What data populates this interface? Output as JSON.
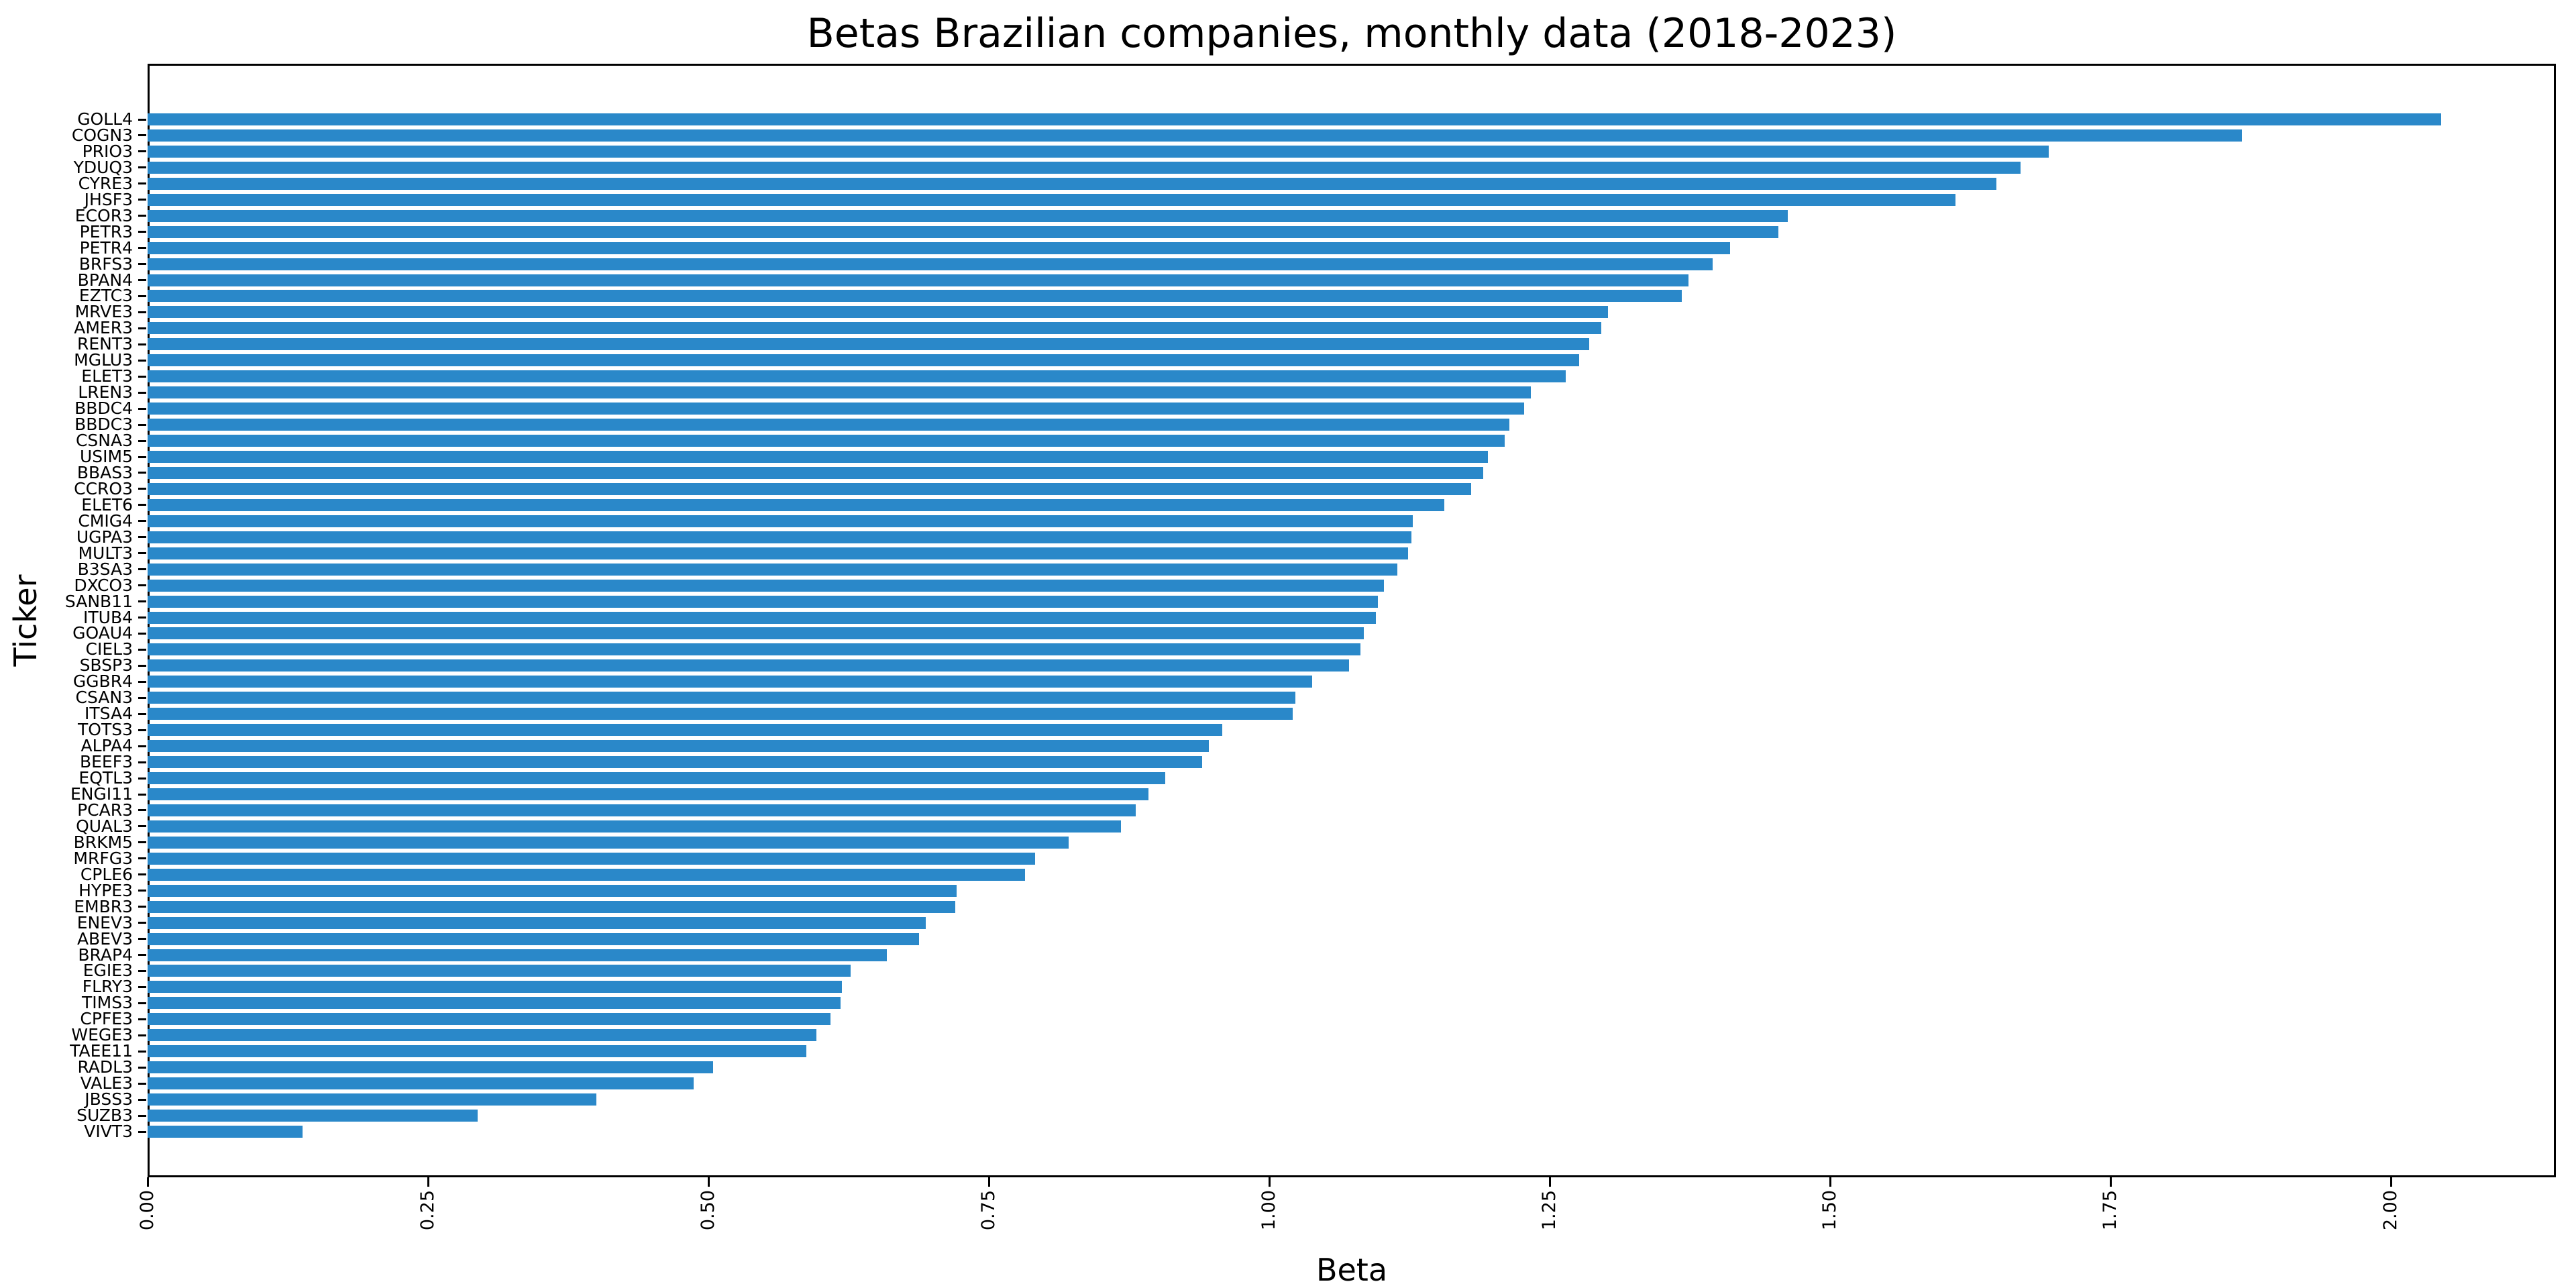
{
  "title": "Betas Brazilian companies, monthly data (2018-2023)",
  "colors": {
    "bar": "#2a88c9",
    "frame": "#000000",
    "background": "#ffffff",
    "text": "#000000"
  },
  "chart_data": {
    "type": "bar",
    "orientation": "horizontal",
    "title": "Betas Brazilian companies, monthly data (2018-2023)",
    "xlabel": "Beta",
    "ylabel": "Ticker",
    "xlim": [
      0,
      2.147
    ],
    "xticks": [
      {
        "value": 0.0,
        "label": "0.00"
      },
      {
        "value": 0.25,
        "label": "0.25"
      },
      {
        "value": 0.5,
        "label": "0.50"
      },
      {
        "value": 0.75,
        "label": "0.75"
      },
      {
        "value": 1.0,
        "label": "1.00"
      },
      {
        "value": 1.25,
        "label": "1.25"
      },
      {
        "value": 1.5,
        "label": "1.50"
      },
      {
        "value": 1.75,
        "label": "1.75"
      },
      {
        "value": 2.0,
        "label": "2.00"
      }
    ],
    "xtick_rotation": 90,
    "grid": false,
    "legend": null,
    "bar_color": "#2a88c9",
    "categories": [
      "GOLL4",
      "COGN3",
      "PRIO3",
      "YDUQ3",
      "CYRE3",
      "JHSF3",
      "ECOR3",
      "PETR3",
      "PETR4",
      "BRFS3",
      "BPAN4",
      "EZTC3",
      "MRVE3",
      "AMER3",
      "RENT3",
      "MGLU3",
      "ELET3",
      "LREN3",
      "BBDC4",
      "BBDC3",
      "CSNA3",
      "USIM5",
      "BBAS3",
      "CCRO3",
      "ELET6",
      "CMIG4",
      "UGPA3",
      "MULT3",
      "B3SA3",
      "DXCO3",
      "SANB11",
      "ITUB4",
      "GOAU4",
      "CIEL3",
      "SBSP3",
      "GGBR4",
      "CSAN3",
      "ITSA4",
      "TOTS3",
      "ALPA4",
      "BEEF3",
      "EQTL3",
      "ENGI11",
      "PCAR3",
      "QUAL3",
      "BRKM5",
      "MRFG3",
      "CPLE6",
      "HYPE3",
      "EMBR3",
      "ENEV3",
      "ABEV3",
      "BRAP4",
      "EGIE3",
      "FLRY3",
      "TIMS3",
      "CPFE3",
      "WEGE3",
      "TAEE11",
      "RADL3",
      "VALE3",
      "JBSS3",
      "SUZB3",
      "VIVT3"
    ],
    "values": [
      2.045,
      1.867,
      1.695,
      1.67,
      1.648,
      1.612,
      1.462,
      1.454,
      1.411,
      1.395,
      1.374,
      1.368,
      1.302,
      1.296,
      1.285,
      1.276,
      1.264,
      1.233,
      1.227,
      1.214,
      1.21,
      1.195,
      1.191,
      1.18,
      1.156,
      1.128,
      1.127,
      1.124,
      1.114,
      1.102,
      1.097,
      1.095,
      1.084,
      1.081,
      1.071,
      1.038,
      1.023,
      1.021,
      0.958,
      0.946,
      0.94,
      0.907,
      0.892,
      0.881,
      0.868,
      0.821,
      0.791,
      0.782,
      0.721,
      0.72,
      0.694,
      0.688,
      0.659,
      0.627,
      0.619,
      0.618,
      0.609,
      0.596,
      0.587,
      0.504,
      0.487,
      0.4,
      0.294,
      0.138
    ]
  }
}
